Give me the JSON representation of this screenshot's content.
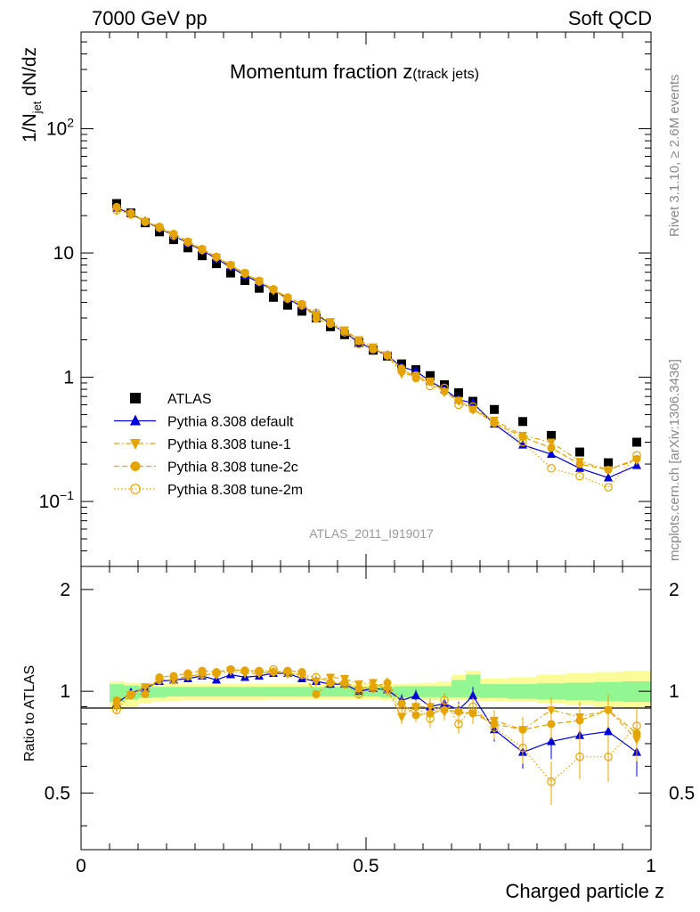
{
  "header": {
    "left": "7000 GeV pp",
    "right": "Soft QCD"
  },
  "side_labels": {
    "rivet": "Rivet 3.1.10, ≥ 2.6M events",
    "mcplots": "mcplots.cern.ch [arXiv:1306.3436]"
  },
  "colors": {
    "atlas": "#000000",
    "default": "#0000d9",
    "tune": "#e5a400",
    "band_inner": "#92f792",
    "band_outer": "#fbfb9a"
  },
  "chart_data": [
    {
      "type": "scatter",
      "panel": "main",
      "title": "Momentum fraction",
      "title_symbol": "z",
      "title_suffix": "(track jets)",
      "ylabel_main": "1/N",
      "ylabel_sub": "jet",
      "ylabel_tail": " dN/dz",
      "watermark": "ATLAS_2011_I919017",
      "xlim": [
        0,
        1
      ],
      "ylim": [
        0.03,
        600
      ],
      "yscale": "log",
      "ytick_labels": [
        {
          "value": 0.1,
          "base": "10",
          "exp": "−1"
        },
        {
          "value": 1,
          "base": "1",
          "exp": ""
        },
        {
          "value": 10,
          "base": "10",
          "exp": ""
        },
        {
          "value": 100,
          "base": "10",
          "exp": "2"
        }
      ],
      "legend_position": "lower-left",
      "x": [
        0.0625,
        0.0875,
        0.1125,
        0.1375,
        0.1625,
        0.1875,
        0.2125,
        0.2375,
        0.2625,
        0.2875,
        0.3125,
        0.3375,
        0.3625,
        0.3875,
        0.4125,
        0.4375,
        0.4625,
        0.4875,
        0.5125,
        0.5375,
        0.5625,
        0.5875,
        0.6125,
        0.6375,
        0.6625,
        0.6875,
        0.725,
        0.775,
        0.825,
        0.875,
        0.925,
        0.975
      ],
      "series": [
        {
          "name": "ATLAS",
          "marker": "square",
          "values": [
            25.0,
            21.0,
            17.5,
            14.8,
            12.8,
            11.0,
            9.5,
            8.2,
            6.9,
            6.0,
            5.2,
            4.4,
            3.8,
            3.4,
            3.0,
            2.55,
            2.2,
            1.9,
            1.65,
            1.48,
            1.28,
            1.15,
            1.03,
            0.87,
            0.75,
            0.64,
            0.55,
            0.44,
            0.34,
            0.25,
            0.205,
            0.3
          ]
        },
        {
          "name": "Pythia 8.308 default",
          "marker": "triangle-up",
          "values": [
            23.0,
            20.8,
            17.9,
            15.8,
            13.8,
            12.0,
            10.5,
            9.0,
            7.7,
            6.6,
            5.8,
            5.0,
            4.3,
            3.7,
            3.2,
            2.7,
            2.3,
            1.9,
            1.68,
            1.5,
            1.21,
            1.12,
            0.93,
            0.8,
            0.66,
            0.62,
            0.42,
            0.285,
            0.24,
            0.185,
            0.155,
            0.195
          ]
        },
        {
          "name": "Pythia 8.308 tune-1",
          "marker": "triangle-down",
          "values": [
            22.5,
            20.5,
            18.0,
            16.0,
            13.8,
            12.2,
            10.6,
            9.2,
            7.9,
            6.8,
            5.9,
            5.0,
            4.3,
            3.8,
            3.2,
            2.8,
            2.4,
            2.0,
            1.75,
            1.5,
            1.07,
            1.03,
            0.93,
            0.76,
            0.65,
            0.55,
            0.45,
            0.34,
            0.3,
            0.21,
            0.18,
            0.215
          ]
        },
        {
          "name": "Pythia 8.308 tune-2c",
          "marker": "circle",
          "values": [
            23.5,
            21.0,
            18.0,
            16.3,
            14.3,
            12.4,
            10.8,
            9.3,
            8.0,
            6.8,
            6.0,
            5.1,
            4.4,
            3.9,
            2.95,
            2.7,
            2.35,
            1.95,
            1.7,
            1.5,
            1.18,
            0.98,
            0.92,
            0.77,
            0.65,
            0.55,
            0.43,
            0.33,
            0.27,
            0.2,
            0.18,
            0.22
          ]
        },
        {
          "name": "Pythia 8.308 tune-2m",
          "marker": "open-circle",
          "values": [
            22.0,
            20.5,
            17.8,
            16.0,
            13.8,
            12.2,
            10.6,
            9.3,
            8.0,
            6.9,
            5.9,
            5.1,
            4.3,
            3.8,
            3.3,
            2.7,
            2.3,
            1.85,
            1.68,
            1.5,
            1.12,
            1.03,
            0.85,
            0.82,
            0.6,
            0.58,
            0.43,
            0.3,
            0.185,
            0.16,
            0.13,
            0.235
          ]
        }
      ]
    },
    {
      "type": "scatter",
      "panel": "ratio",
      "ylabel": "Ratio to ATLAS",
      "xlabel": "Charged particle z",
      "xlim": [
        0,
        1
      ],
      "ylim": [
        0.34,
        2.34
      ],
      "yscale": "log",
      "ytick_labels": [
        {
          "value": 0.5,
          "label": "0.5"
        },
        {
          "value": 1,
          "label": "1"
        },
        {
          "value": 2,
          "label": "2"
        }
      ],
      "xtick_labels": [
        {
          "value": 0,
          "label": "0"
        },
        {
          "value": 0.5,
          "label": "0.5"
        },
        {
          "value": 1,
          "label": "1"
        }
      ],
      "x": [
        0.0625,
        0.0875,
        0.1125,
        0.1375,
        0.1625,
        0.1875,
        0.2125,
        0.2375,
        0.2625,
        0.2875,
        0.3125,
        0.3375,
        0.3625,
        0.3875,
        0.4125,
        0.4375,
        0.4625,
        0.4875,
        0.5125,
        0.5375,
        0.5625,
        0.5875,
        0.6125,
        0.6375,
        0.6625,
        0.6875,
        0.725,
        0.775,
        0.825,
        0.875,
        0.925,
        0.975
      ],
      "band_edges": [
        0.05,
        0.075,
        0.1,
        0.125,
        0.15,
        0.175,
        0.2,
        0.225,
        0.25,
        0.275,
        0.3,
        0.325,
        0.35,
        0.375,
        0.4,
        0.425,
        0.45,
        0.475,
        0.5,
        0.525,
        0.55,
        0.575,
        0.6,
        0.625,
        0.65,
        0.675,
        0.7,
        0.75,
        0.8,
        0.85,
        0.9,
        0.95,
        1.0
      ],
      "band_inner_lo": [
        0.93,
        0.945,
        0.955,
        0.96,
        0.965,
        0.965,
        0.965,
        0.965,
        0.965,
        0.965,
        0.965,
        0.965,
        0.965,
        0.965,
        0.965,
        0.965,
        0.965,
        0.965,
        0.965,
        0.96,
        0.96,
        0.96,
        0.96,
        0.96,
        0.96,
        0.96,
        0.955,
        0.95,
        0.945,
        0.94,
        0.935,
        0.93
      ],
      "band_inner_hi": [
        1.05,
        1.04,
        1.035,
        1.03,
        1.03,
        1.03,
        1.03,
        1.03,
        1.03,
        1.03,
        1.03,
        1.03,
        1.03,
        1.03,
        1.03,
        1.03,
        1.03,
        1.03,
        1.03,
        1.03,
        1.035,
        1.035,
        1.035,
        1.035,
        1.08,
        1.12,
        1.05,
        1.05,
        1.055,
        1.06,
        1.065,
        1.07
      ],
      "band_outer_lo": [
        0.88,
        0.9,
        0.92,
        0.93,
        0.935,
        0.94,
        0.94,
        0.94,
        0.94,
        0.94,
        0.94,
        0.945,
        0.945,
        0.945,
        0.945,
        0.945,
        0.945,
        0.945,
        0.945,
        0.94,
        0.94,
        0.94,
        0.94,
        0.94,
        0.94,
        0.94,
        0.935,
        0.93,
        0.92,
        0.91,
        0.9,
        0.89
      ],
      "band_outer_hi": [
        1.07,
        1.06,
        1.055,
        1.05,
        1.05,
        1.05,
        1.05,
        1.05,
        1.05,
        1.05,
        1.05,
        1.05,
        1.05,
        1.05,
        1.05,
        1.05,
        1.05,
        1.05,
        1.05,
        1.05,
        1.05,
        1.055,
        1.06,
        1.07,
        1.12,
        1.15,
        1.09,
        1.1,
        1.12,
        1.13,
        1.14,
        1.15
      ],
      "series": [
        {
          "name": "Pythia 8.308 default",
          "marker": "triangle-up",
          "line": "solid",
          "values": [
            0.92,
            0.99,
            1.02,
            1.07,
            1.08,
            1.09,
            1.11,
            1.08,
            1.12,
            1.1,
            1.11,
            1.13,
            1.13,
            1.09,
            1.07,
            1.05,
            1.05,
            1.0,
            1.02,
            1.01,
            0.94,
            0.97,
            0.9,
            0.92,
            0.88,
            0.97,
            0.77,
            0.66,
            0.71,
            0.74,
            0.76,
            0.66
          ],
          "errors": [
            0.02,
            0.02,
            0.02,
            0.02,
            0.02,
            0.02,
            0.02,
            0.02,
            0.02,
            0.02,
            0.02,
            0.02,
            0.02,
            0.02,
            0.03,
            0.03,
            0.03,
            0.03,
            0.03,
            0.04,
            0.04,
            0.04,
            0.05,
            0.05,
            0.05,
            0.06,
            0.06,
            0.07,
            0.08,
            0.09,
            0.1,
            0.1
          ]
        },
        {
          "name": "Pythia 8.308 tune-1",
          "marker": "triangle-down",
          "line": "dashdot",
          "values": [
            0.9,
            0.975,
            1.03,
            1.08,
            1.08,
            1.11,
            1.12,
            1.12,
            1.15,
            1.13,
            1.13,
            1.14,
            1.13,
            1.12,
            1.07,
            1.1,
            1.09,
            1.05,
            1.06,
            1.01,
            0.84,
            0.9,
            0.9,
            0.87,
            0.87,
            0.86,
            0.82,
            0.77,
            0.88,
            0.84,
            0.88,
            0.72
          ],
          "errors": [
            0.02,
            0.02,
            0.02,
            0.02,
            0.02,
            0.02,
            0.02,
            0.02,
            0.02,
            0.02,
            0.02,
            0.02,
            0.02,
            0.02,
            0.03,
            0.03,
            0.03,
            0.03,
            0.03,
            0.04,
            0.04,
            0.04,
            0.05,
            0.05,
            0.05,
            0.06,
            0.06,
            0.07,
            0.08,
            0.09,
            0.1,
            0.1
          ]
        },
        {
          "name": "Pythia 8.308 tune-2c",
          "marker": "circle",
          "line": "dashed",
          "values": [
            0.94,
            0.98,
            0.98,
            1.1,
            1.11,
            1.13,
            1.15,
            1.14,
            1.16,
            1.15,
            1.15,
            1.14,
            1.15,
            1.14,
            0.98,
            1.06,
            1.06,
            1.02,
            1.03,
            1.06,
            0.92,
            0.85,
            0.86,
            0.88,
            0.87,
            0.86,
            0.8,
            0.77,
            0.8,
            0.82,
            0.88,
            0.75
          ],
          "errors": [
            0.02,
            0.02,
            0.02,
            0.02,
            0.02,
            0.02,
            0.02,
            0.02,
            0.02,
            0.02,
            0.02,
            0.02,
            0.02,
            0.02,
            0.03,
            0.03,
            0.03,
            0.03,
            0.03,
            0.04,
            0.04,
            0.04,
            0.05,
            0.05,
            0.05,
            0.06,
            0.06,
            0.07,
            0.08,
            0.09,
            0.1,
            0.1
          ]
        },
        {
          "name": "Pythia 8.308 tune-2m",
          "marker": "open-circle",
          "line": "dotted",
          "values": [
            0.88,
            0.975,
            1.02,
            1.08,
            1.08,
            1.11,
            1.12,
            1.13,
            1.16,
            1.15,
            1.14,
            1.16,
            1.13,
            1.12,
            1.1,
            1.06,
            1.05,
            0.98,
            1.02,
            1.01,
            0.88,
            0.9,
            0.83,
            0.94,
            0.8,
            0.9,
            0.78,
            0.68,
            0.54,
            0.64,
            0.64,
            0.79
          ],
          "errors": [
            0.02,
            0.02,
            0.02,
            0.02,
            0.02,
            0.02,
            0.02,
            0.02,
            0.02,
            0.02,
            0.02,
            0.02,
            0.02,
            0.02,
            0.03,
            0.03,
            0.03,
            0.03,
            0.03,
            0.04,
            0.04,
            0.04,
            0.05,
            0.05,
            0.05,
            0.06,
            0.06,
            0.07,
            0.08,
            0.09,
            0.1,
            0.1
          ]
        }
      ]
    }
  ]
}
